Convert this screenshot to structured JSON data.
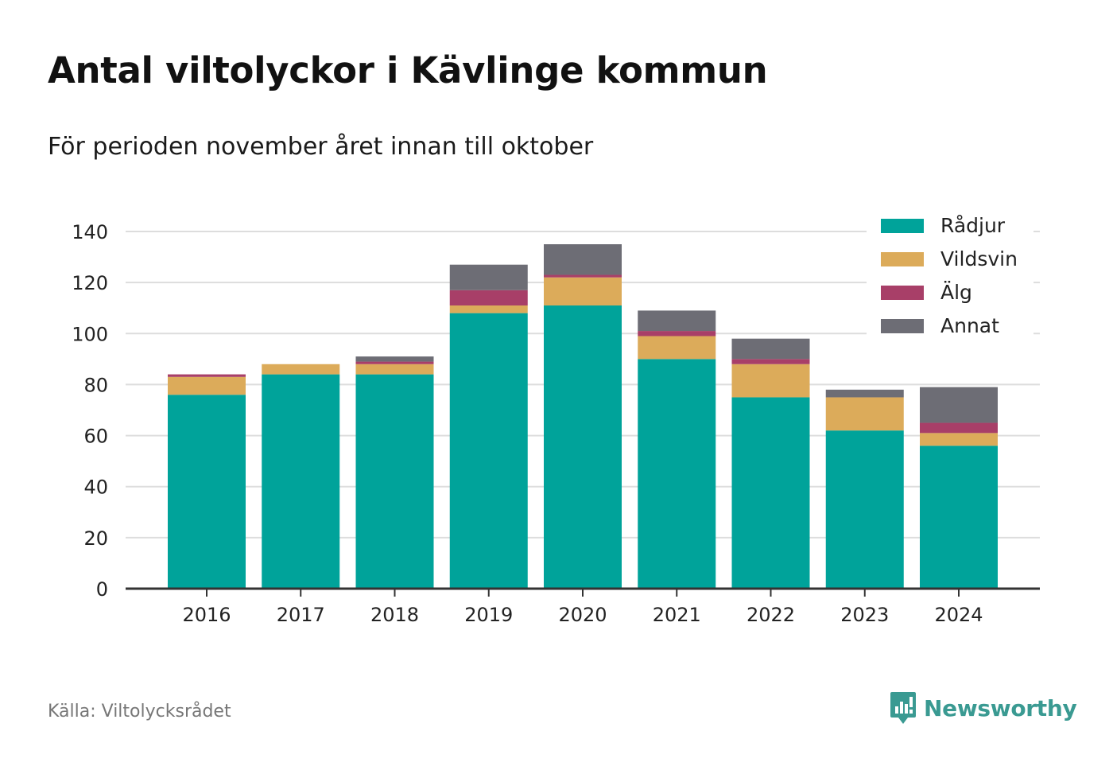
{
  "title": "Antal viltolyckor i Kävlinge kommun",
  "subtitle": "För perioden november året innan till oktober",
  "source": "Källa: Viltolycksrådet",
  "brand": {
    "name": "Newsworthy",
    "icon": "newsworthy-logo-icon",
    "color": "#3a9a92"
  },
  "chart_data": {
    "type": "bar",
    "stacked": true,
    "categories": [
      "2016",
      "2017",
      "2018",
      "2019",
      "2020",
      "2021",
      "2022",
      "2023",
      "2024"
    ],
    "series": [
      {
        "name": "Rådjur",
        "color": "#00a39a",
        "values": [
          76,
          84,
          84,
          108,
          111,
          90,
          75,
          62,
          56
        ]
      },
      {
        "name": "Vildsvin",
        "color": "#dcab5a",
        "values": [
          7,
          4,
          4,
          3,
          11,
          9,
          13,
          13,
          5
        ]
      },
      {
        "name": "Älg",
        "color": "#a83f68",
        "values": [
          1,
          0,
          1,
          6,
          1,
          2,
          2,
          0,
          4
        ]
      },
      {
        "name": "Annat",
        "color": "#6d6d75",
        "values": [
          0,
          0,
          2,
          10,
          12,
          8,
          8,
          3,
          14
        ]
      }
    ],
    "ylim": [
      0,
      140
    ],
    "yticks": [
      0,
      20,
      40,
      60,
      80,
      100,
      120,
      140
    ],
    "xlabel": "",
    "ylabel": "",
    "grid": true,
    "legend": "top-right"
  }
}
